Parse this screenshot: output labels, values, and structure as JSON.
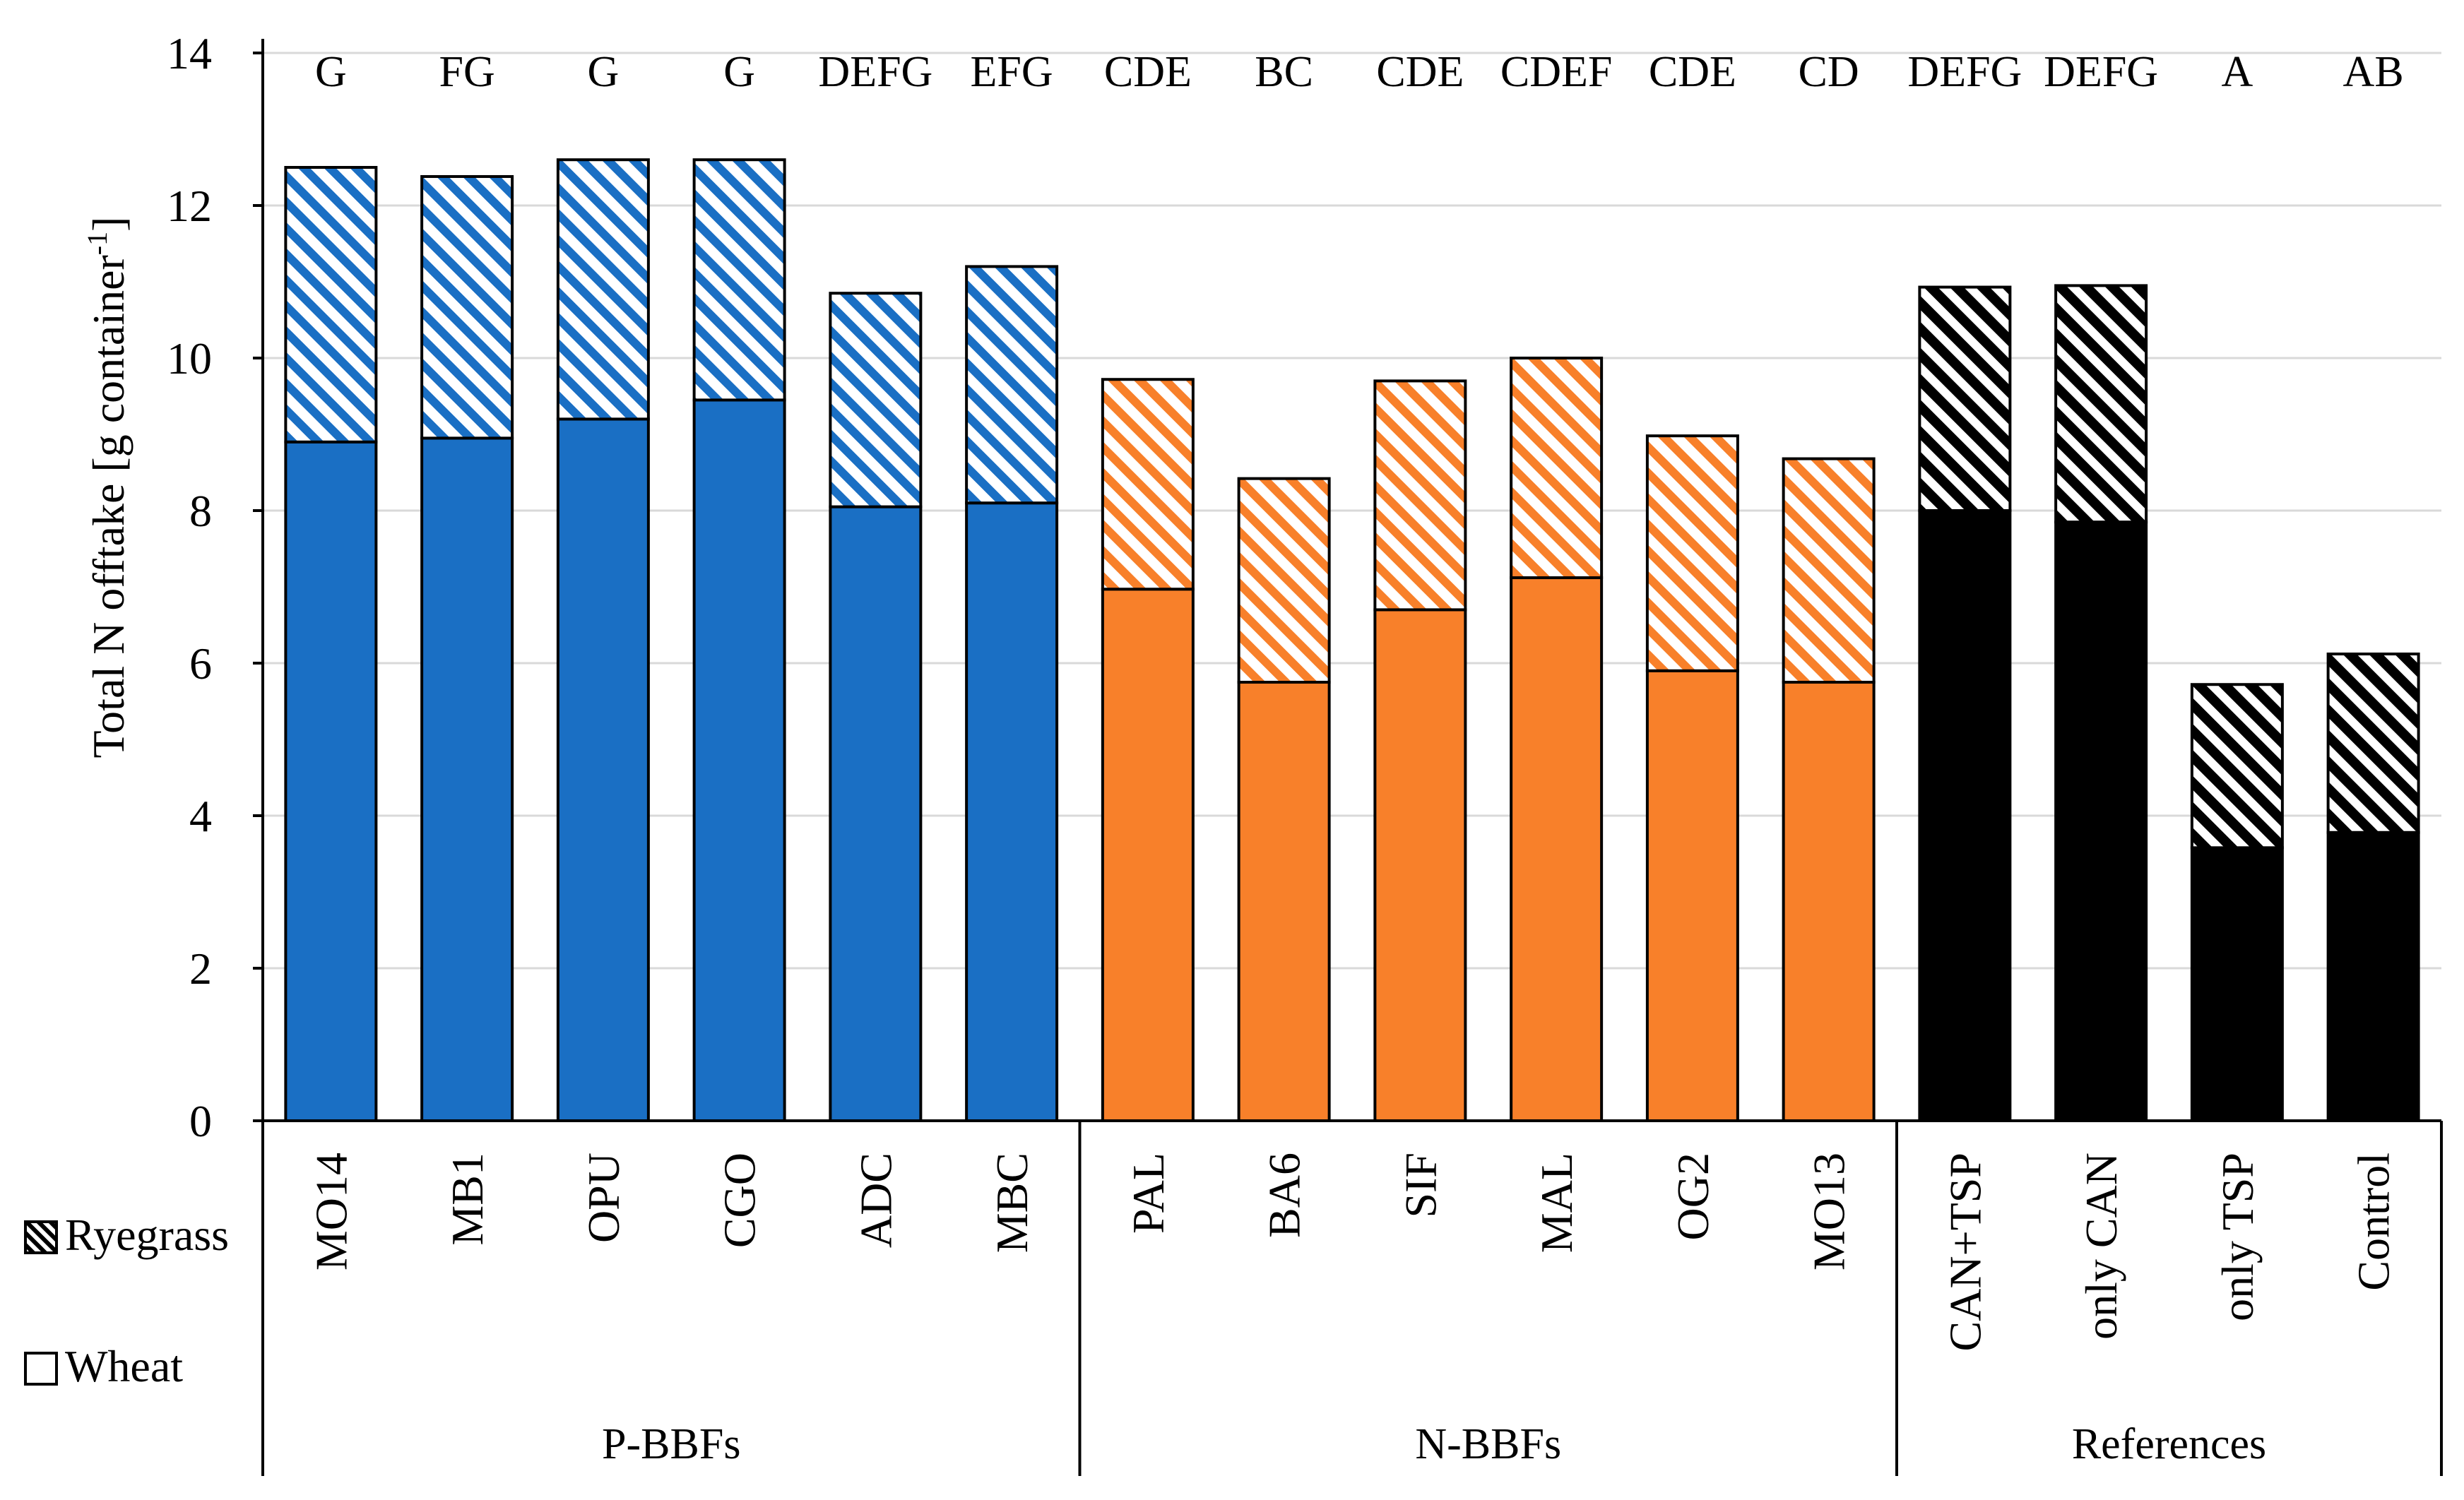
{
  "chart_data": {
    "type": "bar",
    "stacked": true,
    "ylabel": "Total N offtake [g container",
    "ylabel_superscript": "-1",
    "ylabel_suffix": "]",
    "ylim": [
      0,
      14
    ],
    "yticks": [
      "0",
      "2",
      "4",
      "6",
      "8",
      "10",
      "12",
      "14"
    ],
    "grid": true,
    "legend_position": "left-bottom",
    "legend": [
      {
        "name": "Ryegrass",
        "pattern": "hatched"
      },
      {
        "name": "Wheat",
        "pattern": "solid"
      }
    ],
    "categories": [
      "MO14",
      "MB1",
      "OPU",
      "CGO",
      "ADC",
      "MBC",
      "PAL",
      "BA6",
      "SIF",
      "MAL",
      "OG2",
      "MO13",
      "CAN+TSP",
      "only CAN",
      "only TSP",
      "Control"
    ],
    "series": [
      {
        "name": "Wheat",
        "values": [
          8.9,
          8.95,
          9.2,
          9.45,
          8.05,
          8.1,
          6.97,
          5.75,
          6.7,
          7.12,
          5.9,
          5.75,
          8.0,
          7.85,
          3.58,
          3.78
        ]
      },
      {
        "name": "Ryegrass",
        "values": [
          3.6,
          3.43,
          3.4,
          3.15,
          2.8,
          3.1,
          2.75,
          2.67,
          3.0,
          2.88,
          3.08,
          2.93,
          2.93,
          3.1,
          2.14,
          2.34
        ]
      }
    ],
    "significance_letters": [
      "G",
      "FG",
      "G",
      "G",
      "DEFG",
      "EFG",
      "CDE",
      "BC",
      "CDE",
      "CDEF",
      "CDE",
      "CD",
      "DEFG",
      "DEFG",
      "A",
      "AB"
    ],
    "groups": [
      {
        "label": "P-BBFs",
        "color": "#1a6fc4"
      },
      {
        "label": "N-BBFs",
        "color": "#f8802a"
      },
      {
        "label": "References",
        "color": "#000000"
      }
    ],
    "group_of_category": [
      0,
      0,
      0,
      0,
      0,
      0,
      1,
      1,
      1,
      1,
      1,
      1,
      2,
      2,
      2,
      2
    ]
  }
}
